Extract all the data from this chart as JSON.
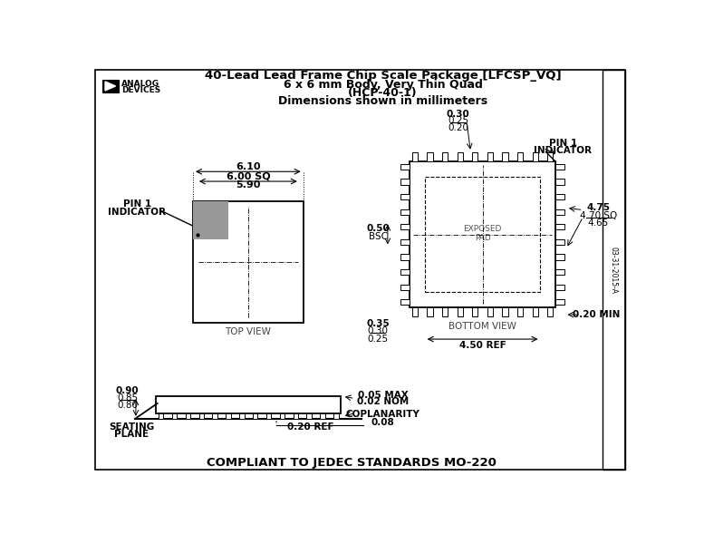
{
  "title_line1": "40-Lead Lead Frame Chip Scale Package [LFCSP_VQ]",
  "title_line2": "6 x 6 mm Body, Very Thin Quad",
  "title_line3": "(HCP-40-1)",
  "title_line4": "Dimensions shown in millimeters",
  "bottom_text": "COMPLIANT TO JEDEC STANDARDS MO-220",
  "side_text": "03-31-2015-A",
  "bg_color": "#ffffff",
  "border_color": "#000000",
  "gray_color": "#999999"
}
